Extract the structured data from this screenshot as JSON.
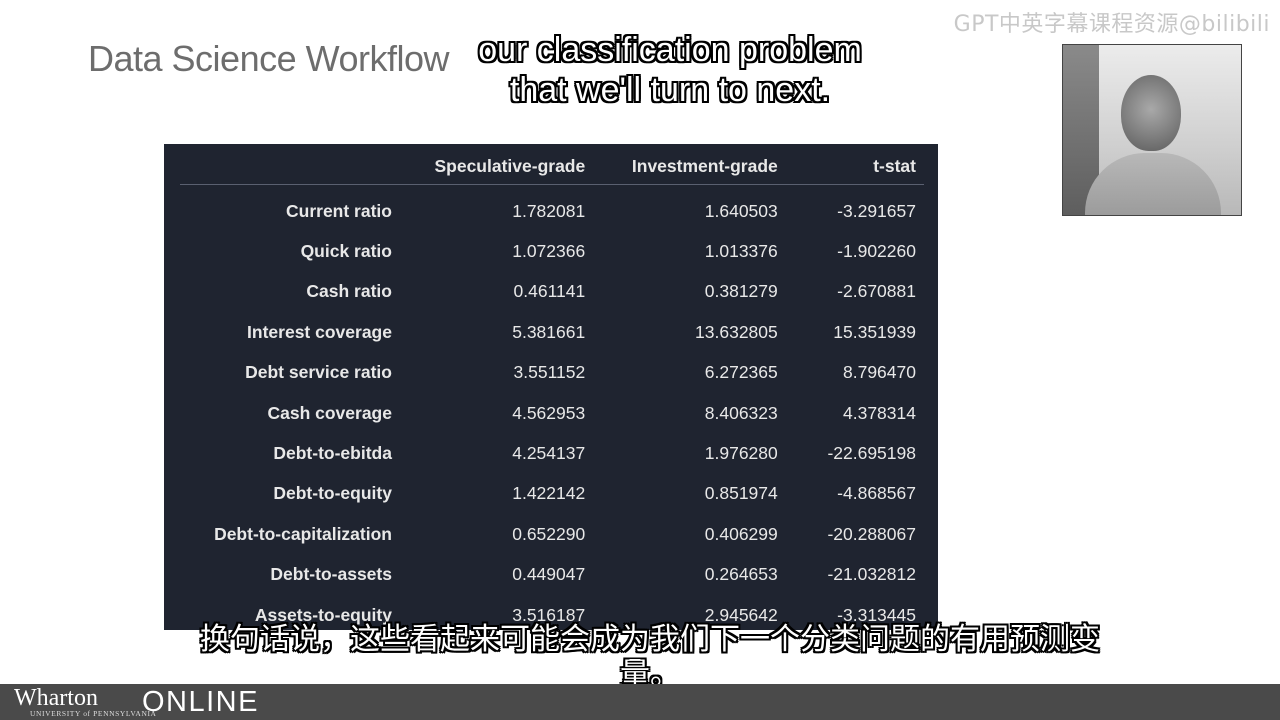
{
  "slide": {
    "title": "Data Science Workflow"
  },
  "watermark": "GPT中英字幕课程资源@bilibili",
  "subtitles": {
    "english_lines": [
      "our classification problem",
      "that we'll turn to next."
    ],
    "chinese_lines": [
      "换句话说，这些看起来可能会成为我们下一个分类问题的有用预测变",
      "量。"
    ]
  },
  "table": {
    "columns": [
      "",
      "Speculative-grade",
      "Investment-grade",
      "t-stat"
    ],
    "rows": [
      {
        "label": "Current ratio",
        "spec": "1.782081",
        "inv": "1.640503",
        "t": "-3.291657"
      },
      {
        "label": "Quick ratio",
        "spec": "1.072366",
        "inv": "1.013376",
        "t": "-1.902260"
      },
      {
        "label": "Cash ratio",
        "spec": "0.461141",
        "inv": "0.381279",
        "t": "-2.670881"
      },
      {
        "label": "Interest coverage",
        "spec": "5.381661",
        "inv": "13.632805",
        "t": "15.351939"
      },
      {
        "label": "Debt service ratio",
        "spec": "3.551152",
        "inv": "6.272365",
        "t": "8.796470"
      },
      {
        "label": "Cash coverage",
        "spec": "4.562953",
        "inv": "8.406323",
        "t": "4.378314"
      },
      {
        "label": "Debt-to-ebitda",
        "spec": "4.254137",
        "inv": "1.976280",
        "t": "-22.695198"
      },
      {
        "label": "Debt-to-equity",
        "spec": "1.422142",
        "inv": "0.851974",
        "t": "-4.868567"
      },
      {
        "label": "Debt-to-capitalization",
        "spec": "0.652290",
        "inv": "0.406299",
        "t": "-20.288067"
      },
      {
        "label": "Debt-to-assets",
        "spec": "0.449047",
        "inv": "0.264653",
        "t": "-21.032812"
      },
      {
        "label": "Assets-to-equity",
        "spec": "3.516187",
        "inv": "2.945642",
        "t": "-3.313445"
      }
    ]
  },
  "footer": {
    "brand": "Wharton",
    "brand_sub": "UNIVERSITY of PENNSYLVANIA",
    "online": "ONLINE"
  },
  "colors": {
    "table_bg": "#1f2430",
    "footer_bg": "#4a4a4a",
    "title": "#6d6d6d"
  }
}
